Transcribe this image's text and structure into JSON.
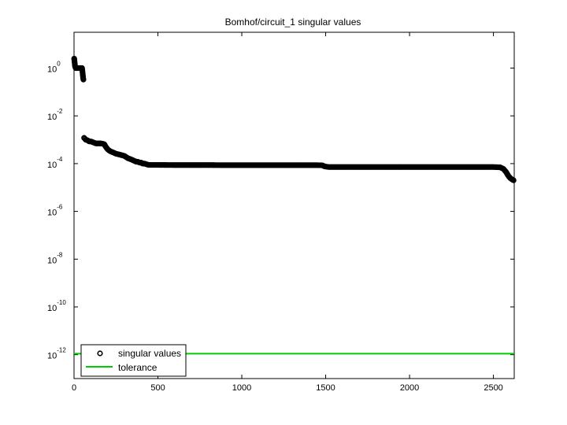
{
  "chart_data": {
    "type": "scatter",
    "title": "Bomhof/circuit_1 singular values",
    "xlabel": "",
    "ylabel": "",
    "xlim": [
      0,
      2624
    ],
    "ylim_log10": [
      -13,
      1.5
    ],
    "y_scale": "log",
    "grid": false,
    "x_ticks": [
      0,
      500,
      1000,
      1500,
      2000,
      2500
    ],
    "x_tick_labels": [
      "0",
      "500",
      "1000",
      "1500",
      "2000",
      "2500"
    ],
    "y_ticks_log10": [
      0,
      -2,
      -4,
      -6,
      -8,
      -10,
      -12
    ],
    "y_tick_labels": [
      {
        "base": "10",
        "exp": "0"
      },
      {
        "base": "10",
        "exp": "-2"
      },
      {
        "base": "10",
        "exp": "-4"
      },
      {
        "base": "10",
        "exp": "-6"
      },
      {
        "base": "10",
        "exp": "-8"
      },
      {
        "base": "10",
        "exp": "-10"
      },
      {
        "base": "10",
        "exp": "-12"
      }
    ],
    "legend_placement": "bottom-left",
    "series": [
      {
        "name": "singular values",
        "marker": "circle",
        "color": "#000000",
        "points": [
          [
            1,
            2.5
          ],
          [
            2,
            2.2
          ],
          [
            4,
            1.6
          ],
          [
            6,
            1.2
          ],
          [
            10,
            1.0
          ],
          [
            20,
            1.0
          ],
          [
            30,
            1.0
          ],
          [
            40,
            1.0
          ],
          [
            48,
            1.0
          ],
          [
            52,
            0.55
          ],
          [
            54,
            0.4
          ],
          [
            56,
            0.33
          ],
          [
            60,
            0.0012
          ],
          [
            65,
            0.0011
          ],
          [
            70,
            0.001
          ],
          [
            80,
            0.00095
          ],
          [
            90,
            0.00085
          ],
          [
            100,
            0.00085
          ],
          [
            110,
            0.0008
          ],
          [
            120,
            0.00075
          ],
          [
            130,
            0.0007
          ],
          [
            140,
            0.0007
          ],
          [
            150,
            0.0007
          ],
          [
            160,
            0.0007
          ],
          [
            170,
            0.00068
          ],
          [
            180,
            0.00065
          ],
          [
            190,
            0.0005
          ],
          [
            200,
            0.0004
          ],
          [
            210,
            0.00035
          ],
          [
            220,
            0.00032
          ],
          [
            230,
            0.0003
          ],
          [
            240,
            0.00028
          ],
          [
            250,
            0.00026
          ],
          [
            260,
            0.00025
          ],
          [
            270,
            0.00024
          ],
          [
            280,
            0.00023
          ],
          [
            290,
            0.00022
          ],
          [
            300,
            0.00021
          ],
          [
            310,
            0.00019
          ],
          [
            320,
            0.00017
          ],
          [
            330,
            0.00016
          ],
          [
            340,
            0.00015
          ],
          [
            350,
            0.00014
          ],
          [
            360,
            0.00013
          ],
          [
            370,
            0.00012
          ],
          [
            380,
            0.00012
          ],
          [
            390,
            0.00011
          ],
          [
            400,
            0.00011
          ],
          [
            410,
            0.0001
          ],
          [
            420,
            0.0001
          ],
          [
            430,
            9.5e-05
          ],
          [
            440,
            9e-05
          ],
          [
            450,
            8.8e-05
          ],
          [
            500,
            8.8e-05
          ],
          [
            600,
            8.7e-05
          ],
          [
            700,
            8.7e-05
          ],
          [
            800,
            8.7e-05
          ],
          [
            900,
            8.6e-05
          ],
          [
            1000,
            8.6e-05
          ],
          [
            1100,
            8.6e-05
          ],
          [
            1200,
            8.6e-05
          ],
          [
            1300,
            8.6e-05
          ],
          [
            1400,
            8.6e-05
          ],
          [
            1450,
            8.6e-05
          ],
          [
            1480,
            8.5e-05
          ],
          [
            1490,
            7.8e-05
          ],
          [
            1500,
            7.5e-05
          ],
          [
            1520,
            7.2e-05
          ],
          [
            1600,
            7.2e-05
          ],
          [
            1700,
            7.2e-05
          ],
          [
            1800,
            7.2e-05
          ],
          [
            1900,
            7.2e-05
          ],
          [
            2000,
            7.2e-05
          ],
          [
            2100,
            7.2e-05
          ],
          [
            2200,
            7.2e-05
          ],
          [
            2300,
            7.2e-05
          ],
          [
            2400,
            7.2e-05
          ],
          [
            2500,
            7.2e-05
          ],
          [
            2540,
            7e-05
          ],
          [
            2560,
            6e-05
          ],
          [
            2575,
            4.5e-05
          ],
          [
            2590,
            3e-05
          ],
          [
            2600,
            2.5e-05
          ],
          [
            2610,
            2.2e-05
          ],
          [
            2620,
            2e-05
          ]
        ]
      },
      {
        "name": "tolerance",
        "style": "line",
        "color": "#00cc00",
        "x": [
          0,
          2624
        ],
        "y": [
          1.1e-12,
          1.1e-12
        ]
      }
    ]
  }
}
